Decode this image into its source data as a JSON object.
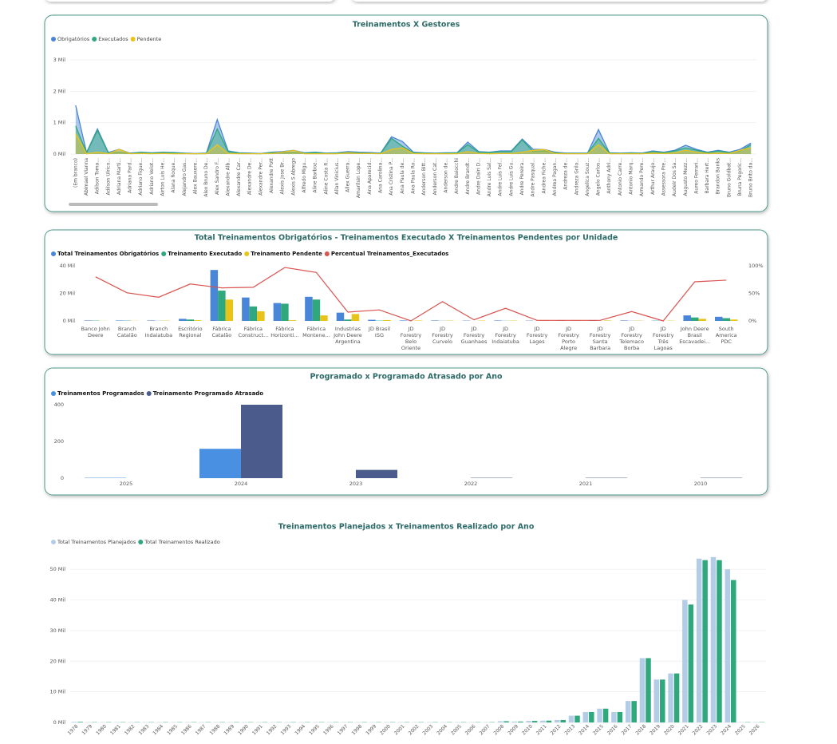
{
  "chart_data": [
    {
      "type": "area",
      "title": "Treinamentos X Gestores",
      "grid": true,
      "categories": [
        "(Em branco)",
        "Abimael Vianna",
        "Adilson Toma...",
        "Adilson Ulrico...",
        "Adriana Marti...",
        "Adriana Pard...",
        "Adriano Figue...",
        "Adriano Velot...",
        "Airton Luis He...",
        "Alana Roque...",
        "Alejandro Gas...",
        "Alex Bauxere...",
        "Alex Bruno De...",
        "Alex Sandro F...",
        "Alexandre Alb...",
        "Alexandre Car...",
        "Alexandre De...",
        "Alexandre Per...",
        "Alexandre Pott",
        "Alexis Jose Br...",
        "Alexis S Abrego",
        "Alfredo Migu...",
        "Aline Barboz...",
        "Aline Costa R...",
        "Allan Vinicius...",
        "Allex Guerra...",
        "Amarilsin Lope...",
        "Ana Aparecid...",
        "Ana Carolina...",
        "Ana Cristina P...",
        "Ana Paula de...",
        "Ana Paula Ro...",
        "Anderson Bitt...",
        "Anderson Cat...",
        "Anderson de...",
        "Andre Baiocchi",
        "Andre Brandt...",
        "Andre Dalri D...",
        "Andre Luis Sal...",
        "Andre Luis Fel...",
        "Andre Luis Gu...",
        "Andre Pereira...",
        "Andre Pasqual...",
        "Andrea Fiche...",
        "Andrea Pagan...",
        "Andreza de...",
        "Andreza Grilo...",
        "Angelica Souz...",
        "Angelo Carlos...",
        "Anthony Adri...",
        "Antonio Carre...",
        "Antonio Marq...",
        "Armando Pere...",
        "Arthur Araujo...",
        "Assessora Pre...",
        "Audeir Dos Sa...",
        "Augusto Mezz...",
        "Aureo Ferrari...",
        "Barbara Hert...",
        "Brandon Banks",
        "Bruno Goldbat...",
        "Bruna Pegoric...",
        "Bruno Brito da..."
      ],
      "series": [
        {
          "name": "Obrigatórios",
          "color": "#4a86d8",
          "values": [
            1550,
            50,
            800,
            50,
            150,
            30,
            60,
            40,
            60,
            50,
            30,
            20,
            30,
            1100,
            100,
            40,
            30,
            20,
            60,
            80,
            120,
            40,
            60,
            30,
            40,
            80,
            60,
            50,
            30,
            550,
            400,
            60,
            40,
            30,
            40,
            40,
            380,
            80,
            60,
            100,
            100,
            480,
            150,
            150,
            60,
            30,
            30,
            30,
            780,
            40,
            30,
            40,
            30,
            100,
            60,
            120,
            280,
            150,
            60,
            120,
            60,
            150,
            350
          ]
        },
        {
          "name": "Executados",
          "color": "#2ea87c",
          "values": [
            900,
            40,
            750,
            40,
            60,
            20,
            50,
            30,
            50,
            40,
            20,
            10,
            20,
            800,
            80,
            30,
            20,
            10,
            50,
            40,
            50,
            30,
            50,
            20,
            30,
            50,
            40,
            30,
            20,
            500,
            250,
            40,
            30,
            20,
            30,
            30,
            300,
            60,
            50,
            80,
            80,
            450,
            80,
            100,
            40,
            20,
            20,
            20,
            500,
            30,
            20,
            30,
            20,
            80,
            40,
            100,
            200,
            120,
            40,
            100,
            40,
            100,
            300
          ]
        },
        {
          "name": "Pendente",
          "color": "#e8c41a",
          "values": [
            650,
            10,
            60,
            10,
            150,
            10,
            20,
            10,
            20,
            10,
            10,
            10,
            10,
            300,
            20,
            10,
            10,
            10,
            20,
            60,
            120,
            10,
            10,
            10,
            10,
            40,
            20,
            20,
            10,
            150,
            200,
            20,
            10,
            10,
            10,
            10,
            80,
            20,
            10,
            20,
            20,
            60,
            120,
            150,
            20,
            10,
            10,
            10,
            300,
            10,
            10,
            10,
            10,
            30,
            20,
            40,
            120,
            60,
            20,
            30,
            20,
            120,
            200
          ]
        }
      ],
      "ylim": [
        0,
        3000
      ],
      "yticks": [
        {
          "value": 0,
          "label": "0 Mil"
        },
        {
          "value": 1000,
          "label": "1 Mil"
        },
        {
          "value": 2000,
          "label": "2 Mil"
        },
        {
          "value": 3000,
          "label": "3 Mil"
        }
      ]
    },
    {
      "type": "bar",
      "title": "Total Treinamentos Obrigatórios - Treinamentos Executado X Treinamentos Pendentes por Unidade",
      "grid": false,
      "categories": [
        "Banco John Deere",
        "Branch Catalão",
        "Branch Indaiatuba",
        "Escritório Regional",
        "Fábrica Catalão",
        "Fábrica Construct...",
        "Fábrica Horizonti...",
        "Fábrica Montene...",
        "Industrias John Deere Argentina",
        "JD Brasil ISG",
        "JD Forestry Belo Oriente",
        "JD Forestry Curvelo",
        "JD Forestry Guanhaes",
        "JD Forestry Indaiatuba",
        "JD Forestry Lages",
        "JD Forestry Porto Alegre",
        "JD Forestry Santa Barbara",
        "JD Forestry Telemaco Borba",
        "JD Forestry Três Lagoas",
        "John Deere Brasil Escavadei...",
        "South America PDC"
      ],
      "series": [
        {
          "name": "Total Treinamentos Obrigatórios",
          "color": "#4a86d8",
          "values": [
            300,
            300,
            300,
            1500,
            37000,
            17000,
            13000,
            17500,
            6000,
            800,
            300,
            300,
            200,
            300,
            200,
            200,
            300,
            300,
            200,
            4000,
            3000
          ]
        },
        {
          "name": "Treinamento Executado",
          "color": "#2ea87c",
          "values": [
            200,
            200,
            100,
            1000,
            22000,
            10500,
            12500,
            15500,
            1000,
            200,
            0,
            100,
            0,
            100,
            0,
            0,
            0,
            100,
            0,
            2500,
            2000
          ]
        },
        {
          "name": "Treinamento Pendente",
          "color": "#e8c41a",
          "values": [
            100,
            100,
            200,
            500,
            15500,
            7000,
            500,
            4000,
            5000,
            600,
            300,
            200,
            200,
            200,
            200,
            200,
            300,
            200,
            200,
            1500,
            1000
          ]
        },
        {
          "name": "Percentual Treinamentos_Executados",
          "color": "#d9534f",
          "type": "line",
          "axis": "y2",
          "values": [
            80,
            51,
            43,
            67,
            60,
            61,
            97,
            88,
            16,
            20,
            0,
            35,
            2,
            23,
            1,
            1,
            1,
            17,
            0,
            71,
            74
          ]
        }
      ],
      "ylim": [
        0,
        40000
      ],
      "yticks": [
        {
          "value": 0,
          "label": "0 Mil"
        },
        {
          "value": 20000,
          "label": "20 Mil"
        },
        {
          "value": 40000,
          "label": "40 Mil"
        }
      ],
      "y2lim": [
        0,
        100
      ],
      "y2ticks": [
        {
          "value": 0,
          "label": "0%"
        },
        {
          "value": 50,
          "label": "50%"
        },
        {
          "value": 100,
          "label": "100%"
        }
      ]
    },
    {
      "type": "bar",
      "title": "Programado x Programado Atrasado por Ano",
      "grid": false,
      "categories": [
        "2025",
        "2024",
        "2023",
        "2022",
        "2021",
        "2010"
      ],
      "series": [
        {
          "name": "Treinamentos Programados",
          "color": "#4a90e2",
          "values": [
            2,
            160,
            0,
            0,
            0,
            0
          ]
        },
        {
          "name": "Treinamento Programado Atrasado",
          "color": "#4a5b8c",
          "values": [
            0,
            400,
            45,
            2,
            2,
            2
          ]
        }
      ],
      "ylim": [
        0,
        400
      ],
      "yticks": [
        0,
        200,
        400
      ]
    },
    {
      "type": "bar",
      "title": "Treinamentos Planejados x Treinamentos Realizado por Ano",
      "grid": true,
      "categories": [
        "1978",
        "1979",
        "1980",
        "1981",
        "1982",
        "1983",
        "1984",
        "1985",
        "1986",
        "1987",
        "1988",
        "1989",
        "1990",
        "1991",
        "1992",
        "1993",
        "1994",
        "1995",
        "1996",
        "1997",
        "1998",
        "1999",
        "2000",
        "2001",
        "2002",
        "2003",
        "2004",
        "2005",
        "2006",
        "2007",
        "2008",
        "2009",
        "2010",
        "2011",
        "2012",
        "2013",
        "2014",
        "2015",
        "2016",
        "2017",
        "2018",
        "2019",
        "2020",
        "2021",
        "2022",
        "2023",
        "2024",
        "2025",
        "2026"
      ],
      "series": [
        {
          "name": "Total Treinamentos Planejados",
          "color": "#b3cde8",
          "values": [
            200,
            100,
            100,
            100,
            100,
            100,
            100,
            100,
            100,
            100,
            100,
            100,
            100,
            100,
            100,
            100,
            100,
            100,
            100,
            100,
            100,
            100,
            100,
            100,
            100,
            100,
            100,
            100,
            100,
            100,
            400,
            300,
            500,
            600,
            800,
            2200,
            3400,
            4500,
            3400,
            7000,
            21000,
            14000,
            16000,
            40000,
            53500,
            54000,
            50000,
            100,
            100
          ]
        },
        {
          "name": "Total Treinamentos Realizado",
          "color": "#2ea87c",
          "values": [
            200,
            100,
            100,
            100,
            100,
            100,
            100,
            100,
            100,
            100,
            100,
            100,
            100,
            100,
            100,
            100,
            100,
            100,
            100,
            100,
            100,
            100,
            100,
            100,
            100,
            100,
            100,
            100,
            100,
            100,
            400,
            300,
            500,
            600,
            800,
            2200,
            3400,
            4500,
            3400,
            7000,
            21000,
            14000,
            16000,
            38500,
            53000,
            53000,
            46500,
            100,
            100
          ]
        }
      ],
      "ylim": [
        0,
        55000
      ],
      "yticks": [
        {
          "value": 0,
          "label": "0 Mil"
        },
        {
          "value": 10000,
          "label": "10 Mil"
        },
        {
          "value": 20000,
          "label": "20 Mil"
        },
        {
          "value": 30000,
          "label": "30 Mil"
        },
        {
          "value": 40000,
          "label": "40 Mil"
        },
        {
          "value": 50000,
          "label": "50 Mil"
        }
      ]
    }
  ]
}
